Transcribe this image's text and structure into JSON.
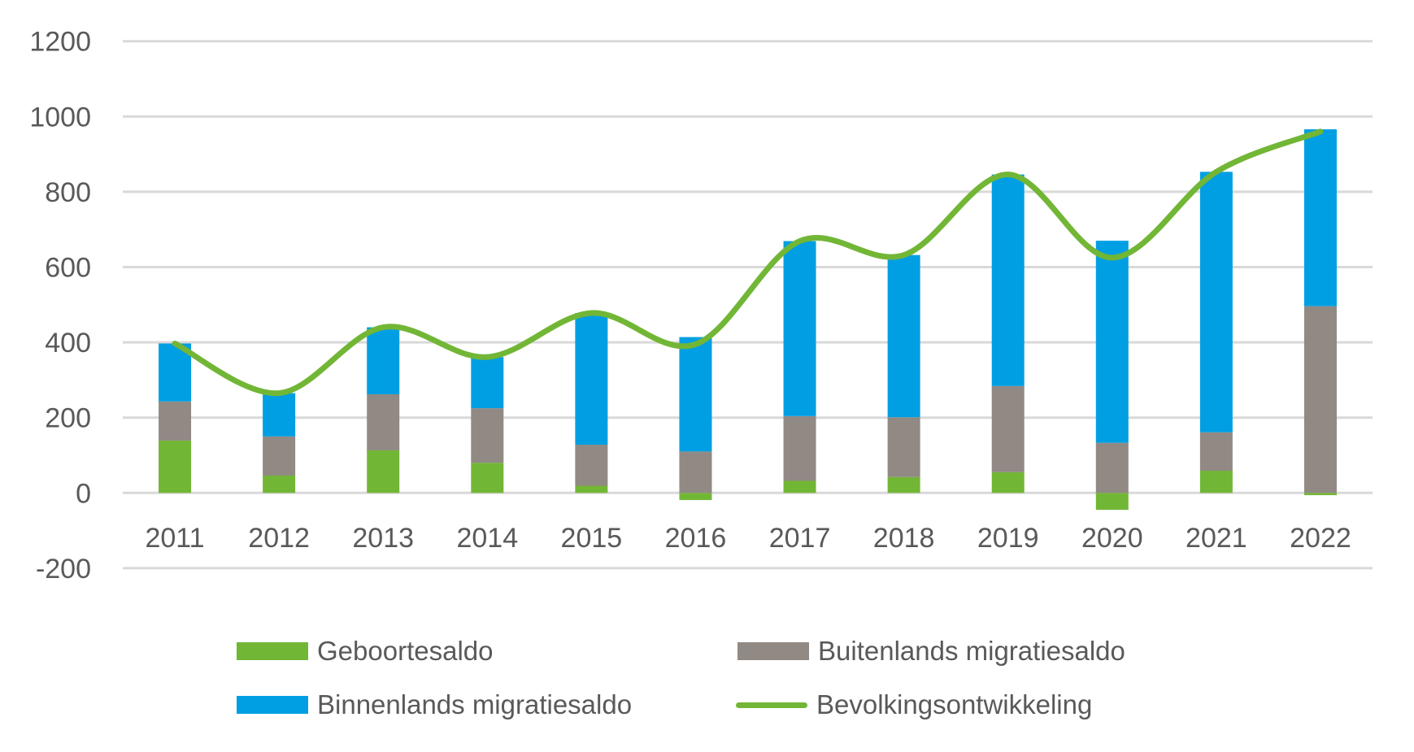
{
  "chart_data": {
    "type": "bar",
    "stacked": true,
    "title": "",
    "xlabel": "",
    "ylabel": "",
    "ylim": [
      -200,
      1200
    ],
    "yticks": [
      -200,
      0,
      200,
      400,
      600,
      800,
      1000,
      1200
    ],
    "ytick_labels": [
      "-200",
      "0",
      "200",
      "400",
      "600",
      "800",
      "1000",
      "1200"
    ],
    "grid": true,
    "legend_position": "bottom",
    "categories": [
      "2011",
      "2012",
      "2013",
      "2014",
      "2015",
      "2016",
      "2017",
      "2018",
      "2019",
      "2020",
      "2021",
      "2022"
    ],
    "series": [
      {
        "name": "Geboortesaldo",
        "kind": "bar",
        "color": "#72B636",
        "values": [
          139,
          46,
          113,
          80,
          19,
          -19,
          32,
          42,
          55,
          -45,
          59,
          -6
        ]
      },
      {
        "name": "Buitenlands migratiesaldo",
        "kind": "bar",
        "color": "#918983",
        "values": [
          104,
          104,
          149,
          145,
          109,
          110,
          172,
          159,
          229,
          133,
          102,
          496
        ]
      },
      {
        "name": "Binnenlands migratiesaldo",
        "kind": "bar",
        "color": "#009FE3",
        "values": [
          154,
          115,
          178,
          136,
          350,
          304,
          465,
          431,
          562,
          537,
          692,
          470
        ]
      },
      {
        "name": "Bevolkingsontwikkeling",
        "kind": "line",
        "smooth": true,
        "color": "#72B636",
        "values": [
          397,
          265,
          440,
          361,
          478,
          395,
          669,
          632,
          846,
          625,
          853,
          960
        ]
      }
    ]
  },
  "legend": {
    "items": [
      {
        "label": "Geboortesaldo",
        "type": "swatch",
        "color": "#72B636"
      },
      {
        "label": "Buitenlands migratiesaldo",
        "type": "swatch",
        "color": "#918983"
      },
      {
        "label": "Binnenlands migratiesaldo",
        "type": "swatch",
        "color": "#009FE3"
      },
      {
        "label": "Bevolkingsontwikkeling",
        "type": "line",
        "color": "#72B636"
      }
    ]
  },
  "colors": {
    "grid": "#D9D9D9",
    "text": "#595959"
  }
}
